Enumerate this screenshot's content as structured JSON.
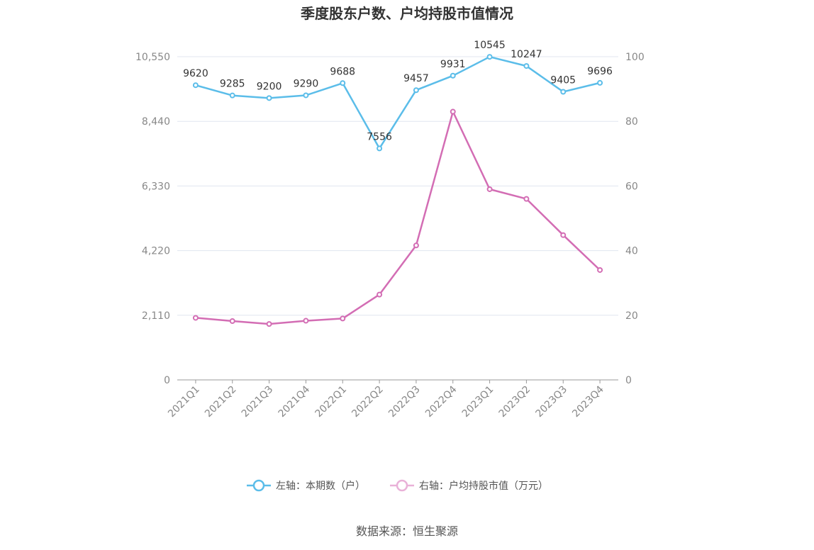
{
  "chart_data": {
    "type": "line",
    "title": "季度股东户数、户均持股市值情况",
    "categories": [
      "2021Q1",
      "2021Q2",
      "2021Q3",
      "2021Q4",
      "2022Q1",
      "2022Q2",
      "2022Q3",
      "2022Q4",
      "2023Q1",
      "2023Q2",
      "2023Q3",
      "2023Q4"
    ],
    "series": [
      {
        "name": "左轴：本期数（户）",
        "axis": "left",
        "color": "#5bbde9",
        "values": [
          9620,
          9285,
          9200,
          9290,
          9688,
          7556,
          9457,
          9931,
          10545,
          10247,
          9405,
          9696
        ],
        "labels": [
          "9620",
          "9285",
          "9200",
          "9290",
          "9688",
          "7556",
          "9457",
          "9931",
          "10545",
          "10247",
          "9405",
          "9696"
        ]
      },
      {
        "name": "右轴：户均持股市值（万元）",
        "axis": "right",
        "color": "#d36db4",
        "values": [
          19.2,
          18.2,
          17.3,
          18.3,
          19.0,
          26.4,
          41.6,
          83.0,
          59.0,
          56.0,
          44.8,
          34.0
        ]
      }
    ],
    "left_axis": {
      "ylim": [
        0,
        10550
      ],
      "ticks": [
        "0",
        "2,110",
        "4,220",
        "6,330",
        "8,440",
        "10,550"
      ]
    },
    "right_axis": {
      "ylim": [
        0,
        100
      ],
      "ticks": [
        "0",
        "20",
        "40",
        "60",
        "80",
        "100"
      ]
    },
    "grid": true,
    "legend_position": "bottom"
  },
  "source": "数据来源：恒生聚源"
}
